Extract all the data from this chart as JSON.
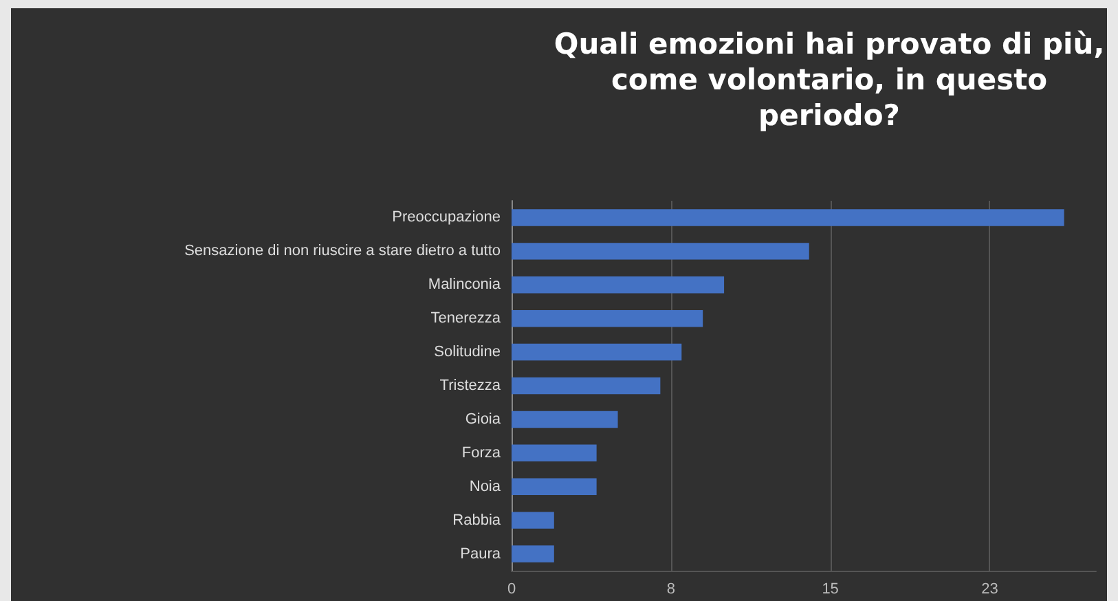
{
  "chart_data": {
    "type": "bar",
    "orientation": "horizontal",
    "title": "Quali emozioni hai provato di più,\ncome volontario, in questo\nperiodo?",
    "categories": [
      "Preoccupazione",
      "Sensazione di non riuscire a stare dietro a tutto",
      "Malinconia",
      "Tenerezza",
      "Solitudine",
      "Tristezza",
      "Gioia",
      "Forza",
      "Noia",
      "Rabbia",
      "Paura"
    ],
    "values": [
      26,
      14,
      10,
      9,
      8,
      7,
      5,
      4,
      4,
      2,
      2
    ],
    "color": "#4472c4",
    "xlim": [
      0,
      27.5
    ],
    "xticks": [
      0,
      {
        "value": 7.5,
        "label": "8"
      },
      15,
      {
        "value": 22.5,
        "label": "23"
      }
    ],
    "grid": "x"
  }
}
